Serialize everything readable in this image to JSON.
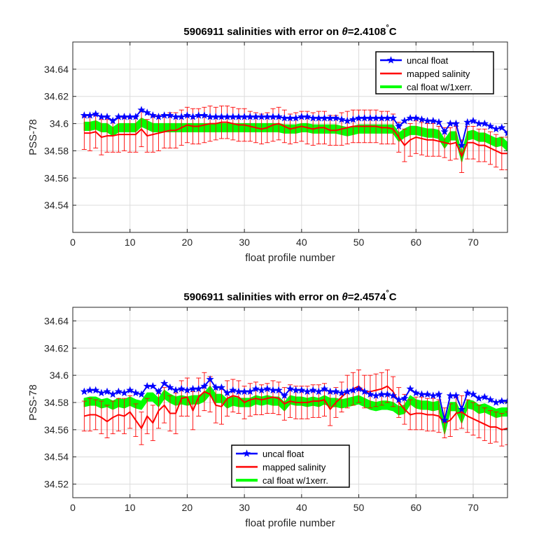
{
  "chart_data": [
    {
      "type": "line",
      "title_prefix": "5906911 salinities with error on ",
      "title_theta": "θ",
      "title_suffix": "=2.4108",
      "title_deg": "°",
      "title_unit": "C",
      "xlabel": "float profile number",
      "ylabel": "PSS-78",
      "xlim": [
        0,
        76
      ],
      "ylim": [
        34.52,
        34.66
      ],
      "xticks": [
        0,
        10,
        20,
        30,
        40,
        50,
        60,
        70
      ],
      "xtick_labels": [
        "0",
        "10",
        "20",
        "30",
        "40",
        "50",
        "60",
        "70"
      ],
      "yticks": [
        34.54,
        34.56,
        34.58,
        34.6,
        34.62,
        34.64
      ],
      "ytick_labels": [
        "34.54",
        "34.56",
        "34.58",
        "34.6",
        "34.62",
        "34.64"
      ],
      "grid": true,
      "legend_position": "top-right",
      "x": [
        2,
        3,
        4,
        5,
        6,
        7,
        8,
        9,
        10,
        11,
        12,
        13,
        14,
        15,
        16,
        17,
        18,
        19,
        20,
        21,
        22,
        23,
        24,
        25,
        26,
        27,
        28,
        29,
        30,
        31,
        32,
        33,
        34,
        35,
        36,
        37,
        38,
        39,
        40,
        41,
        42,
        43,
        44,
        45,
        46,
        47,
        48,
        49,
        50,
        51,
        52,
        53,
        54,
        55,
        56,
        57,
        58,
        59,
        60,
        61,
        62,
        63,
        64,
        65,
        66,
        67,
        68,
        69,
        70,
        71,
        72,
        73,
        74,
        75,
        76
      ],
      "series": [
        {
          "name": "uncal float",
          "color": "#0000ff",
          "marker": "star",
          "values": [
            34.606,
            34.606,
            34.607,
            34.605,
            34.605,
            34.602,
            34.605,
            34.605,
            34.605,
            34.605,
            34.61,
            34.608,
            34.606,
            34.605,
            34.606,
            34.606,
            34.605,
            34.605,
            34.606,
            34.605,
            34.606,
            34.606,
            34.605,
            34.605,
            34.605,
            34.605,
            34.605,
            34.605,
            34.605,
            34.605,
            34.605,
            34.605,
            34.605,
            34.605,
            34.605,
            34.604,
            34.604,
            34.604,
            34.605,
            34.605,
            34.604,
            34.604,
            34.604,
            34.604,
            34.604,
            34.603,
            34.602,
            34.603,
            34.604,
            34.604,
            34.604,
            34.604,
            34.604,
            34.604,
            34.604,
            34.598,
            34.602,
            34.604,
            34.604,
            34.603,
            34.602,
            34.602,
            34.601,
            34.594,
            34.6,
            34.6,
            34.584,
            34.601,
            34.602,
            34.6,
            34.6,
            34.598,
            34.596,
            34.597,
            34.593
          ]
        },
        {
          "name": "mapped salinity",
          "color": "#ff0000",
          "values": [
            34.593,
            34.593,
            34.594,
            34.59,
            34.591,
            34.591,
            34.592,
            34.592,
            34.592,
            34.592,
            34.596,
            34.591,
            34.592,
            34.593,
            34.594,
            34.595,
            34.595,
            34.597,
            34.599,
            34.598,
            34.598,
            34.599,
            34.6,
            34.6,
            34.601,
            34.601,
            34.6,
            34.599,
            34.599,
            34.598,
            34.597,
            34.596,
            34.597,
            34.599,
            34.6,
            34.598,
            34.596,
            34.597,
            34.598,
            34.597,
            34.596,
            34.597,
            34.597,
            34.595,
            34.595,
            34.596,
            34.597,
            34.598,
            34.598,
            34.598,
            34.598,
            34.598,
            34.597,
            34.597,
            34.596,
            34.59,
            34.584,
            34.588,
            34.59,
            34.589,
            34.588,
            34.588,
            34.587,
            34.586,
            34.585,
            34.586,
            34.576,
            34.586,
            34.586,
            34.584,
            34.584,
            34.582,
            34.58,
            34.578,
            34.578
          ],
          "errors": [
            0.012,
            0.013,
            0.012,
            0.013,
            0.012,
            0.012,
            0.013,
            0.012,
            0.013,
            0.013,
            0.013,
            0.012,
            0.013,
            0.013,
            0.012,
            0.013,
            0.013,
            0.013,
            0.013,
            0.013,
            0.013,
            0.013,
            0.013,
            0.012,
            0.012,
            0.012,
            0.012,
            0.012,
            0.012,
            0.011,
            0.011,
            0.011,
            0.011,
            0.012,
            0.012,
            0.012,
            0.011,
            0.011,
            0.011,
            0.012,
            0.012,
            0.012,
            0.012,
            0.011,
            0.011,
            0.012,
            0.012,
            0.012,
            0.012,
            0.012,
            0.012,
            0.012,
            0.012,
            0.012,
            0.011,
            0.011,
            0.012,
            0.012,
            0.012,
            0.012,
            0.012,
            0.012,
            0.011,
            0.011,
            0.012,
            0.012,
            0.012,
            0.012,
            0.012,
            0.012,
            0.012,
            0.012,
            0.012,
            0.012,
            0.012
          ]
        },
        {
          "name": "cal float w/1xerr.",
          "color": "#00ff00",
          "values": [
            34.598,
            34.598,
            34.599,
            34.597,
            34.597,
            34.594,
            34.597,
            34.597,
            34.597,
            34.597,
            34.601,
            34.599,
            34.597,
            34.597,
            34.597,
            34.597,
            34.597,
            34.597,
            34.597,
            34.597,
            34.597,
            34.597,
            34.597,
            34.597,
            34.597,
            34.597,
            34.597,
            34.597,
            34.597,
            34.597,
            34.597,
            34.597,
            34.597,
            34.597,
            34.597,
            34.596,
            34.596,
            34.596,
            34.597,
            34.597,
            34.596,
            34.596,
            34.596,
            34.596,
            34.596,
            34.595,
            34.594,
            34.595,
            34.596,
            34.596,
            34.596,
            34.596,
            34.596,
            34.596,
            34.596,
            34.59,
            34.593,
            34.595,
            34.595,
            34.594,
            34.593,
            34.593,
            34.592,
            34.585,
            34.591,
            34.591,
            34.575,
            34.591,
            34.592,
            34.59,
            34.59,
            34.588,
            34.586,
            34.587,
            34.583
          ],
          "band_halfwidth": 0.003
        }
      ]
    },
    {
      "type": "line",
      "title_prefix": "5906911 salinities with error on ",
      "title_theta": "θ",
      "title_suffix": "=2.4574",
      "title_deg": "°",
      "title_unit": "C",
      "xlabel": "float profile number",
      "ylabel": "PSS-78",
      "xlim": [
        0,
        76
      ],
      "ylim": [
        34.51,
        34.65
      ],
      "xticks": [
        0,
        10,
        20,
        30,
        40,
        50,
        60,
        70
      ],
      "xtick_labels": [
        "0",
        "10",
        "20",
        "30",
        "40",
        "50",
        "60",
        "70"
      ],
      "yticks": [
        34.52,
        34.54,
        34.56,
        34.58,
        34.6,
        34.62,
        34.64
      ],
      "ytick_labels": [
        "34.52",
        "34.54",
        "34.56",
        "34.58",
        "34.6",
        "34.62",
        "34.64"
      ],
      "grid": true,
      "legend_position": "bottom-center",
      "x": [
        2,
        3,
        4,
        5,
        6,
        7,
        8,
        9,
        10,
        11,
        12,
        13,
        14,
        15,
        16,
        17,
        18,
        19,
        20,
        21,
        22,
        23,
        24,
        25,
        26,
        27,
        28,
        29,
        30,
        31,
        32,
        33,
        34,
        35,
        36,
        37,
        38,
        39,
        40,
        41,
        42,
        43,
        44,
        45,
        46,
        47,
        48,
        49,
        50,
        51,
        52,
        53,
        54,
        55,
        56,
        57,
        58,
        59,
        60,
        61,
        62,
        63,
        64,
        65,
        66,
        67,
        68,
        69,
        70,
        71,
        72,
        73,
        74,
        75,
        76
      ],
      "series": [
        {
          "name": "uncal float",
          "color": "#0000ff",
          "marker": "star",
          "values": [
            34.588,
            34.589,
            34.589,
            34.587,
            34.588,
            34.586,
            34.588,
            34.587,
            34.589,
            34.587,
            34.586,
            34.592,
            34.592,
            34.588,
            34.594,
            34.591,
            34.589,
            34.59,
            34.589,
            34.59,
            34.59,
            34.592,
            34.597,
            34.591,
            34.591,
            34.587,
            34.589,
            34.588,
            34.588,
            34.588,
            34.59,
            34.589,
            34.59,
            34.589,
            34.589,
            34.585,
            34.59,
            34.589,
            34.589,
            34.588,
            34.589,
            34.588,
            34.59,
            34.588,
            34.588,
            34.587,
            34.588,
            34.589,
            34.59,
            34.588,
            34.586,
            34.585,
            34.586,
            34.586,
            34.585,
            34.582,
            34.583,
            34.59,
            34.587,
            34.586,
            34.586,
            34.585,
            34.586,
            34.567,
            34.585,
            34.585,
            34.575,
            34.587,
            34.586,
            34.583,
            34.584,
            34.582,
            34.58,
            34.581,
            34.581
          ]
        },
        {
          "name": "mapped salinity",
          "color": "#ff0000",
          "values": [
            34.57,
            34.571,
            34.571,
            34.569,
            34.566,
            34.569,
            34.571,
            34.57,
            34.573,
            34.567,
            34.561,
            34.57,
            34.565,
            34.574,
            34.578,
            34.572,
            34.572,
            34.583,
            34.584,
            34.574,
            34.584,
            34.588,
            34.586,
            34.578,
            34.577,
            34.583,
            34.585,
            34.584,
            34.58,
            34.582,
            34.583,
            34.582,
            34.583,
            34.584,
            34.583,
            34.579,
            34.581,
            34.58,
            34.58,
            34.58,
            34.581,
            34.581,
            34.582,
            34.575,
            34.58,
            34.584,
            34.588,
            34.59,
            34.592,
            34.588,
            34.588,
            34.589,
            34.59,
            34.592,
            34.588,
            34.58,
            34.575,
            34.571,
            34.572,
            34.572,
            34.571,
            34.571,
            34.57,
            34.565,
            34.567,
            34.572,
            34.573,
            34.57,
            34.568,
            34.566,
            34.564,
            34.562,
            34.562,
            34.56,
            34.561
          ],
          "errors": [
            0.011,
            0.012,
            0.011,
            0.012,
            0.012,
            0.012,
            0.012,
            0.013,
            0.012,
            0.012,
            0.012,
            0.013,
            0.013,
            0.013,
            0.013,
            0.013,
            0.015,
            0.013,
            0.014,
            0.014,
            0.014,
            0.014,
            0.013,
            0.013,
            0.013,
            0.013,
            0.012,
            0.012,
            0.012,
            0.012,
            0.012,
            0.011,
            0.011,
            0.012,
            0.012,
            0.012,
            0.012,
            0.012,
            0.012,
            0.012,
            0.012,
            0.012,
            0.012,
            0.012,
            0.011,
            0.011,
            0.012,
            0.012,
            0.012,
            0.012,
            0.012,
            0.012,
            0.012,
            0.012,
            0.011,
            0.011,
            0.011,
            0.011,
            0.012,
            0.012,
            0.012,
            0.012,
            0.012,
            0.011,
            0.012,
            0.012,
            0.012,
            0.012,
            0.012,
            0.012,
            0.012,
            0.012,
            0.011,
            0.012,
            0.012
          ]
        },
        {
          "name": "cal float w/1xerr.",
          "color": "#00ff00",
          "values": [
            34.58,
            34.581,
            34.581,
            34.579,
            34.58,
            34.578,
            34.58,
            34.579,
            34.581,
            34.579,
            34.578,
            34.584,
            34.584,
            34.58,
            34.586,
            34.583,
            34.581,
            34.582,
            34.581,
            34.582,
            34.582,
            34.584,
            34.589,
            34.583,
            34.583,
            34.579,
            34.581,
            34.58,
            34.58,
            34.58,
            34.582,
            34.581,
            34.582,
            34.581,
            34.581,
            34.577,
            34.582,
            34.581,
            34.581,
            34.58,
            34.581,
            34.58,
            34.582,
            34.58,
            34.58,
            34.579,
            34.58,
            34.581,
            34.582,
            34.58,
            34.578,
            34.577,
            34.578,
            34.578,
            34.577,
            34.574,
            34.575,
            34.582,
            34.579,
            34.578,
            34.578,
            34.577,
            34.578,
            34.56,
            34.577,
            34.577,
            34.568,
            34.579,
            34.578,
            34.575,
            34.576,
            34.574,
            34.572,
            34.573,
            34.573
          ],
          "band_halfwidth": 0.003
        }
      ]
    }
  ]
}
